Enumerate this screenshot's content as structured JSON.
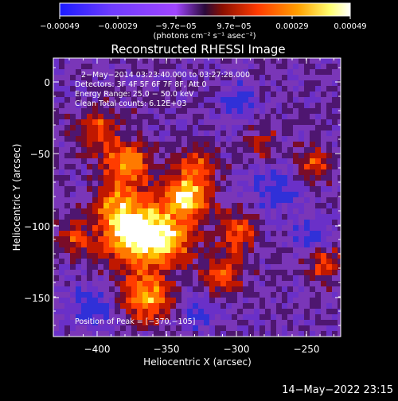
{
  "colorbar": {
    "tick_labels": [
      "−0.00049",
      "−0.00029",
      "−9.7e−05",
      "9.7e−05",
      "0.00029",
      "0.00049"
    ],
    "unit_label": "(photons cm⁻² s⁻¹ asec⁻²)",
    "colors": [
      "#1b1bff",
      "#6f3cff",
      "#a045ff",
      "#5a0f78",
      "#c01a00",
      "#ff5500",
      "#ffb000",
      "#ffff80",
      "#ffffff"
    ]
  },
  "plot": {
    "title": "Reconstructed RHESSI Image",
    "xlabel": "Heliocentric X (arcsec)",
    "ylabel": "Heliocentric Y (arcsec)",
    "xtick_labels": [
      "−400",
      "−350",
      "−300",
      "−250"
    ],
    "ytick_labels": [
      "0",
      "−50",
      "−100",
      "−150"
    ],
    "xlim": [
      -425,
      -229
    ],
    "ylim": [
      -174,
      10
    ],
    "info_lines": [
      "2−May−2014 03:23:40.000 to 03:27:28.000",
      "Detectors: 3F 4F 5F 6F 7F 8F, Att 0",
      "Energy Range: 25.0 − 50.0 keV",
      "Clean     Total counts: 6.12E+03"
    ],
    "peak_label": "Position of Peak = [−370,−105]"
  },
  "timestamp": "14−May−2022 23:15"
}
